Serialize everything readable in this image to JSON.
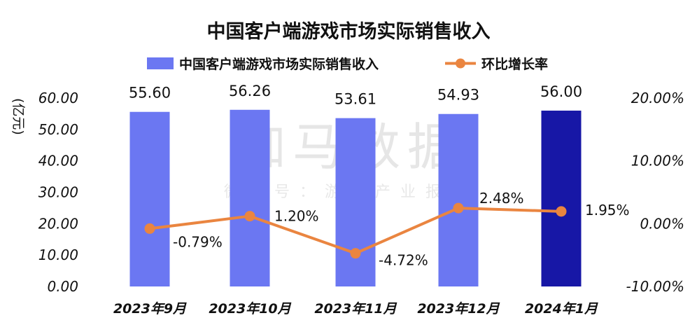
{
  "watermark": {
    "main": "伽马数据",
    "sub": "微信号：游戏产业报告"
  },
  "chart_data": {
    "type": "bar",
    "title": "中国客户端游戏市场实际销售收入",
    "categories": [
      "2023年9月",
      "2023年10月",
      "2023年11月",
      "2023年12月",
      "2024年1月"
    ],
    "y_unit": "(亿元)",
    "ylim": [
      0,
      60
    ],
    "y_ticks": [
      "0.00",
      "10.00",
      "20.00",
      "30.00",
      "40.00",
      "50.00",
      "60.00"
    ],
    "y2lim": [
      -10,
      20
    ],
    "y2_ticks": [
      "-10.00%",
      "0.00%",
      "10.00%",
      "20.00%"
    ],
    "series": [
      {
        "name": "中国客户端游戏市场实际销售收入",
        "type": "bar",
        "values": [
          55.6,
          56.26,
          53.61,
          54.93,
          56.0
        ],
        "labels": [
          "55.60",
          "56.26",
          "53.61",
          "54.93",
          "56.00"
        ],
        "color": "#6b77f2",
        "highlight_color": "#1717a6"
      },
      {
        "name": "环比增长率",
        "type": "line",
        "axis": "right",
        "values": [
          -0.79,
          1.2,
          -4.72,
          2.48,
          1.95
        ],
        "labels": [
          "-0.79%",
          "1.20%",
          "-4.72%",
          "2.48%",
          "1.95%"
        ],
        "color": "#ea8540"
      }
    ]
  }
}
